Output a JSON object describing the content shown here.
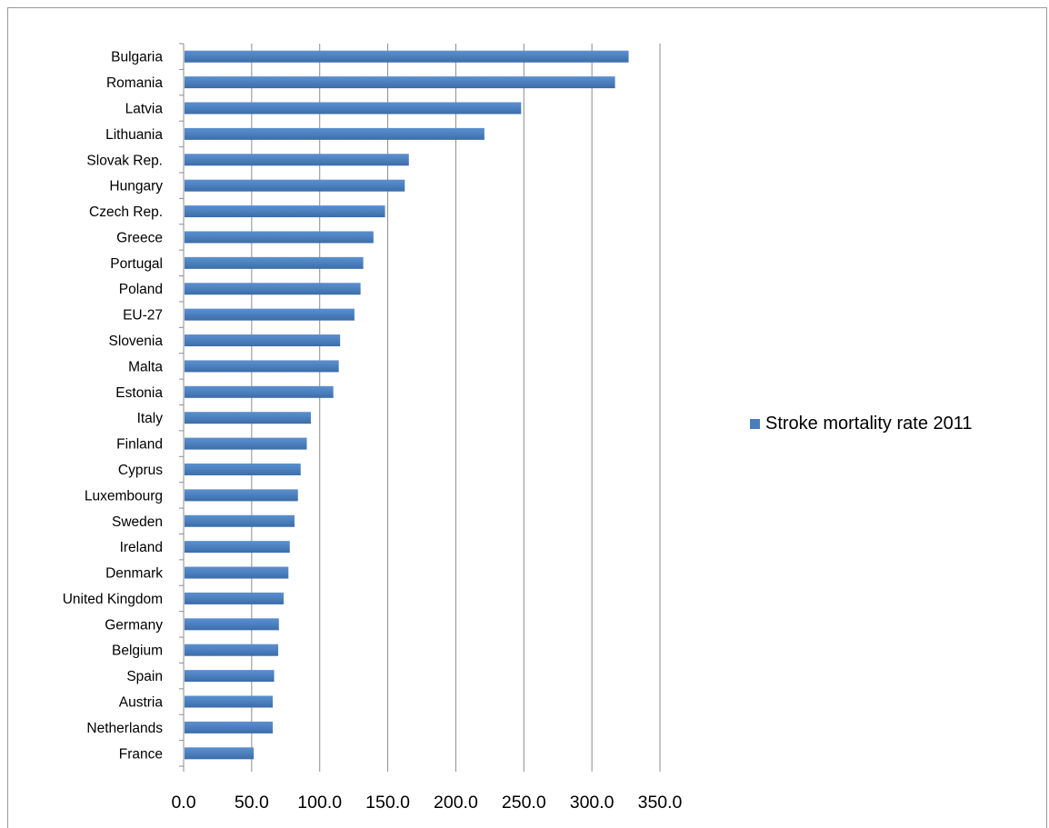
{
  "chart_data": {
    "type": "bar",
    "orientation": "horizontal",
    "categories": [
      "Bulgaria",
      "Romania",
      "Latvia",
      "Lithuania",
      "Slovak Rep.",
      "Hungary",
      "Czech Rep.",
      "Greece",
      "Portugal",
      "Poland",
      "EU-27",
      "Slovenia",
      "Malta",
      "Estonia",
      "Italy",
      "Finland",
      "Cyprus",
      "Luxembourg",
      "Sweden",
      "Ireland",
      "Denmark ",
      "United Kingdom",
      "Germany ",
      "Belgium",
      "Spain",
      "Austria",
      "Netherlands",
      "France"
    ],
    "series": [
      {
        "name": "Stroke mortality rate 2011",
        "color": "#4a7ebb",
        "values": [
          327.0,
          317.0,
          248.0,
          221.0,
          165.5,
          162.5,
          148.0,
          139.5,
          132.0,
          130.0,
          125.5,
          115.0,
          114.0,
          110.0,
          93.5,
          90.5,
          86.0,
          84.0,
          81.5,
          78.0,
          77.0,
          73.5,
          70.0,
          69.5,
          66.5,
          65.5,
          65.5,
          51.5
        ]
      }
    ],
    "xlim": [
      0,
      350
    ],
    "ticks": [
      "0.0",
      "50.0",
      "100.0",
      "150.0",
      "200.0",
      "250.0",
      "300.0",
      "350.0"
    ],
    "grid": true,
    "legend_position": "right"
  }
}
